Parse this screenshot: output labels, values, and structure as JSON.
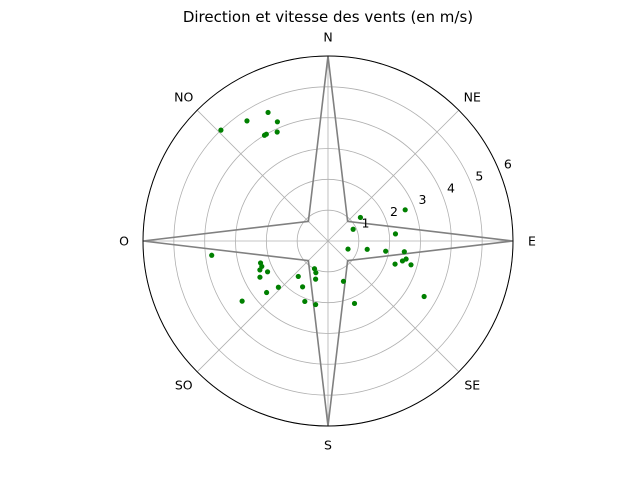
{
  "chart_data": {
    "type": "scatter",
    "projection": "polar",
    "title": "Direction et vitesse des vents (en m/s)",
    "angular_labels": [
      "E",
      "NE",
      "N",
      "NO",
      "O",
      "SO",
      "S",
      "SE"
    ],
    "angular_label_degrees": [
      0,
      45,
      90,
      135,
      180,
      225,
      270,
      315
    ],
    "radial_ticks": [
      "1",
      "2",
      "3",
      "4",
      "5",
      "6"
    ],
    "rlim": [
      0,
      6
    ],
    "grid": true,
    "colors": {
      "points": "#008000",
      "rose": "#808080",
      "grid": "#b0b0b0",
      "frame": "#000000"
    },
    "rose_line": {
      "theta_deg": [
        0,
        45,
        90,
        135,
        180,
        225,
        270,
        315,
        0
      ],
      "r": [
        6.0,
        0.9,
        6.0,
        0.9,
        6.0,
        0.9,
        6.0,
        0.9,
        6.0
      ]
    },
    "points": [
      {
        "theta_deg": 36,
        "r": 1.3
      },
      {
        "theta_deg": 22,
        "r": 2.7
      },
      {
        "theta_deg": 25,
        "r": 0.9
      },
      {
        "theta_deg": 6,
        "r": 2.2
      },
      {
        "theta_deg": -10,
        "r": 1.9
      },
      {
        "theta_deg": -8,
        "r": 2.5
      },
      {
        "theta_deg": -13,
        "r": 2.6
      },
      {
        "theta_deg": -19,
        "r": 2.3
      },
      {
        "theta_deg": -16,
        "r": 2.8
      },
      {
        "theta_deg": -15,
        "r": 2.5
      },
      {
        "theta_deg": -30,
        "r": 3.6
      },
      {
        "theta_deg": -69,
        "r": 1.4
      },
      {
        "theta_deg": -67,
        "r": 2.2
      },
      {
        "theta_deg": -12,
        "r": 1.3
      },
      {
        "theta_deg": -22,
        "r": 0.7
      },
      {
        "theta_deg": -101,
        "r": 2.1
      },
      {
        "theta_deg": -111,
        "r": 2.1
      },
      {
        "theta_deg": -119,
        "r": 1.7
      },
      {
        "theta_deg": -116,
        "r": 1.0
      },
      {
        "theta_deg": -108,
        "r": 1.3
      },
      {
        "theta_deg": -111,
        "r": 1.1
      },
      {
        "theta_deg": -130,
        "r": 1.5
      },
      {
        "theta_deg": -137,
        "r": 2.2
      },
      {
        "theta_deg": -153,
        "r": 2.2
      },
      {
        "theta_deg": -152,
        "r": 2.5
      },
      {
        "theta_deg": -157,
        "r": 2.4
      },
      {
        "theta_deg": -159,
        "r": 2.3
      },
      {
        "theta_deg": -162,
        "r": 2.3
      },
      {
        "theta_deg": -173,
        "r": 3.8
      },
      {
        "theta_deg": -145,
        "r": 3.4
      },
      {
        "theta_deg": -140,
        "r": 2.6
      },
      {
        "theta_deg": 115,
        "r": 4.6
      },
      {
        "theta_deg": 124,
        "r": 4.7
      },
      {
        "theta_deg": 115,
        "r": 3.9
      },
      {
        "theta_deg": 113,
        "r": 4.2
      },
      {
        "theta_deg": 120,
        "r": 4.0
      },
      {
        "theta_deg": 121,
        "r": 4.0
      },
      {
        "theta_deg": 134,
        "r": 5.0
      }
    ]
  }
}
